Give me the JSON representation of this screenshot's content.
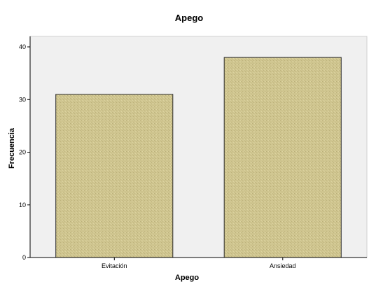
{
  "chart_data": {
    "type": "bar",
    "title": "Apego",
    "xlabel": "Apego",
    "ylabel": "Frecuencia",
    "categories": [
      "Evitación",
      "Ansiedad"
    ],
    "values": [
      31,
      38
    ],
    "ylim": [
      0,
      42
    ],
    "yticks": [
      0,
      10,
      20,
      30,
      40
    ],
    "grid": false,
    "legend": "none",
    "colors": {
      "plot_background": "#f0f0f0",
      "bar_fill": "#cfc58f",
      "bar_stroke": "#2a2a2a",
      "axis": "#000000"
    }
  }
}
